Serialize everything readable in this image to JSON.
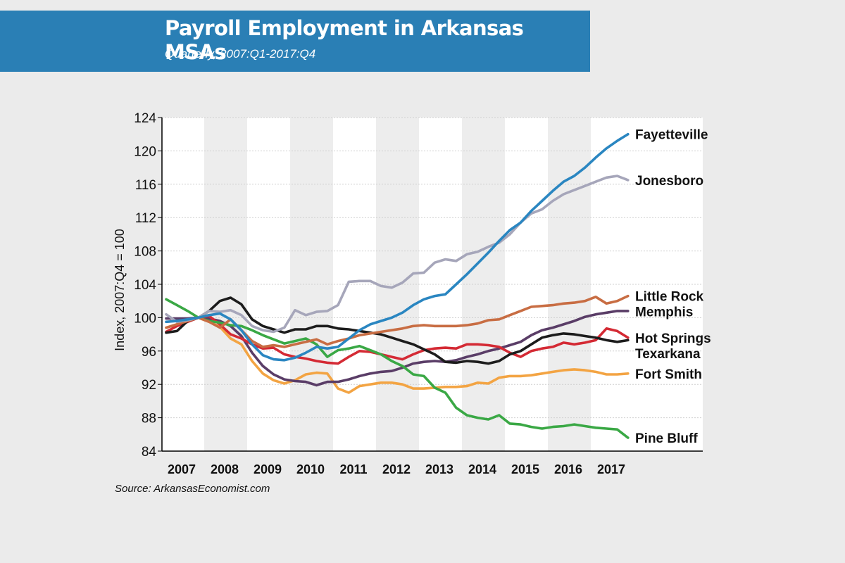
{
  "header": {
    "title": "Payroll Employment in Arkansas MSAs",
    "subtitle": "Quarterly, 2007:Q1-2017:Q4"
  },
  "source": "Source: ArkansasEconomist.com",
  "chart_data": {
    "type": "line",
    "title": "Payroll Employment in Arkansas MSAs",
    "subtitle": "Quarterly, 2007:Q1-2017:Q4",
    "ylabel": "Index, 2007:Q4 = 100",
    "xlabel": "",
    "ylim": [
      84,
      124
    ],
    "yticks": [
      84,
      88,
      92,
      96,
      100,
      104,
      108,
      112,
      116,
      120,
      124
    ],
    "years": [
      "2007",
      "2008",
      "2009",
      "2010",
      "2011",
      "2012",
      "2013",
      "2014",
      "2015",
      "2016",
      "2017"
    ],
    "x_periods": "quarterly, 2007:Q1 to 2017:Q4 (44 quarters)",
    "grid": true,
    "alternating_year_bands": true,
    "legend": "direct labels at right end of lines",
    "series": [
      {
        "name": "Fayetteville",
        "color": "#2a86c1",
        "values": [
          99.5,
          99.6,
          99.8,
          100,
          100.3,
          100.5,
          99.8,
          98.5,
          96.8,
          95.5,
          95,
          94.9,
          95.2,
          95.8,
          96.5,
          96.3,
          96.5,
          97.5,
          98.5,
          99.2,
          99.6,
          100,
          100.6,
          101.5,
          102.2,
          102.6,
          102.8,
          104,
          105.2,
          106.5,
          107.8,
          109.2,
          110.5,
          111.4,
          112.8,
          114,
          115.2,
          116.3,
          117,
          118,
          119.2,
          120.3,
          121.2,
          122
        ],
        "label": "Fayetteville"
      },
      {
        "name": "Jonesboro",
        "color": "#a6a6ba",
        "values": [
          100.4,
          99.5,
          99.7,
          100,
          100.8,
          100.7,
          100.9,
          100.3,
          99,
          98.5,
          98.3,
          98.8,
          100.9,
          100.3,
          100.7,
          100.8,
          101.5,
          104.3,
          104.4,
          104.4,
          103.8,
          103.6,
          104.2,
          105.3,
          105.4,
          106.6,
          107,
          106.8,
          107.6,
          107.9,
          108.5,
          109,
          110,
          111.4,
          112.5,
          113,
          114,
          114.8,
          115.3,
          115.8,
          116.3,
          116.8,
          117,
          116.5
        ],
        "label": "Jonesboro"
      },
      {
        "name": "Little Rock",
        "color": "#c86d43",
        "values": [
          98.8,
          99.2,
          99.6,
          100,
          99.5,
          98.8,
          99.8,
          98.5,
          97.2,
          96.5,
          96.7,
          96.5,
          96.8,
          97.1,
          97.4,
          96.8,
          97.2,
          97.5,
          97.9,
          98.1,
          98.3,
          98.5,
          98.7,
          99,
          99.1,
          99,
          99,
          99,
          99.1,
          99.3,
          99.7,
          99.8,
          100.3,
          100.8,
          101.3,
          101.4,
          101.5,
          101.7,
          101.8,
          102,
          102.5,
          101.7,
          102,
          102.6
        ],
        "label": "Little Rock"
      },
      {
        "name": "Memphis",
        "color": "#5a3d67",
        "values": [
          99.9,
          99.9,
          99.9,
          100,
          99.9,
          99.6,
          99,
          97.8,
          95.8,
          94.2,
          93.2,
          92.6,
          92.4,
          92.3,
          91.9,
          92.3,
          92.3,
          92.6,
          93,
          93.3,
          93.5,
          93.6,
          94,
          94.5,
          94.7,
          94.8,
          94.7,
          94.9,
          95.3,
          95.6,
          96,
          96.3,
          96.7,
          97.1,
          97.9,
          98.5,
          98.8,
          99.2,
          99.6,
          100.1,
          100.4,
          100.6,
          100.8,
          100.8
        ],
        "label": "Memphis"
      },
      {
        "name": "Hot Springs",
        "color": "#d42a34",
        "values": [
          98.3,
          99,
          99.5,
          100,
          100.2,
          99.2,
          98,
          97.5,
          96.8,
          96.3,
          96.4,
          95.6,
          95.3,
          95.1,
          94.8,
          94.6,
          94.5,
          95.3,
          96,
          95.9,
          95.6,
          95.3,
          95,
          95.6,
          96.1,
          96.3,
          96.4,
          96.3,
          96.8,
          96.8,
          96.7,
          96.5,
          95.8,
          95.3,
          96,
          96.3,
          96.5,
          97,
          96.8,
          97,
          97.3,
          98.7,
          98.4,
          97.6
        ],
        "label": "Hot Springs"
      },
      {
        "name": "Texarkana",
        "color": "#1c1c1c",
        "values": [
          98.2,
          98.4,
          99.6,
          100,
          100.8,
          102,
          102.4,
          101.6,
          99.8,
          99,
          98.6,
          98.2,
          98.6,
          98.6,
          99,
          99,
          98.7,
          98.6,
          98.4,
          98.2,
          98,
          97.6,
          97.2,
          96.8,
          96.2,
          95.6,
          94.7,
          94.6,
          94.8,
          94.7,
          94.5,
          94.8,
          95.6,
          96,
          96.8,
          97.6,
          97.9,
          98.1,
          98,
          97.8,
          97.6,
          97.3,
          97.1,
          97.3
        ],
        "label": "Texarkana"
      },
      {
        "name": "Fort Smith",
        "color": "#f3a443",
        "values": [
          98.8,
          99.2,
          99.6,
          100,
          99.5,
          98.9,
          97.5,
          96.8,
          94.8,
          93.3,
          92.5,
          92.1,
          92.5,
          93.2,
          93.4,
          93.3,
          91.5,
          91,
          91.8,
          92,
          92.2,
          92.2,
          92,
          91.5,
          91.5,
          91.6,
          91.7,
          91.7,
          91.8,
          92.2,
          92.1,
          92.8,
          93,
          93,
          93.1,
          93.3,
          93.5,
          93.7,
          93.8,
          93.7,
          93.5,
          93.2,
          93.2,
          93.3
        ],
        "label": "Fort Smith"
      },
      {
        "name": "Pine Bluff",
        "color": "#3aa845",
        "values": [
          102.2,
          101.5,
          100.8,
          100,
          99.6,
          99.4,
          99.1,
          99,
          98.5,
          97.9,
          97.4,
          96.9,
          97.2,
          97.5,
          96.8,
          95.3,
          96.1,
          96.3,
          96.6,
          96.1,
          95.6,
          94.8,
          94.2,
          93.2,
          93,
          91.6,
          91,
          89.2,
          88.3,
          88,
          87.8,
          88.3,
          87.3,
          87.2,
          86.9,
          86.7,
          86.9,
          87,
          87.2,
          87,
          86.8,
          86.7,
          86.6,
          85.6
        ],
        "label": "Pine Bluff"
      }
    ]
  }
}
